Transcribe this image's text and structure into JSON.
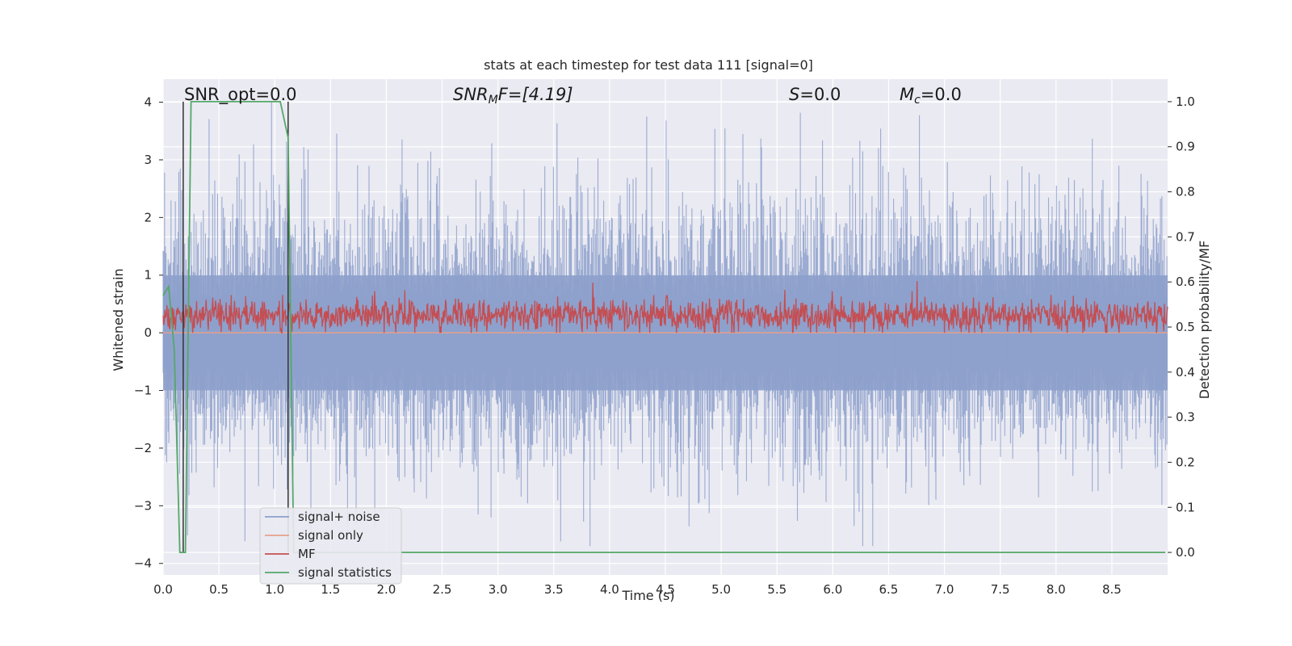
{
  "chart_data": {
    "type": "line",
    "title": "stats at each timestep for test data 111 [signal=0]",
    "xlabel": "Time (s)",
    "ylabel_left": "Whitened strain",
    "ylabel_right": "Detection probability/MF",
    "xlim": [
      0,
      9.0
    ],
    "ylim_left": [
      -4.2,
      4.4
    ],
    "ylim_right": [
      -0.05,
      1.05
    ],
    "x_ticks": [
      "0.0",
      "0.5",
      "1.0",
      "1.5",
      "2.0",
      "2.5",
      "3.0",
      "3.5",
      "4.0",
      "4.5",
      "5.0",
      "5.5",
      "6.0",
      "6.5",
      "7.0",
      "7.5",
      "8.0",
      "8.5"
    ],
    "y_left_ticks": [
      "4",
      "3",
      "2",
      "1",
      "0",
      "−1",
      "−2",
      "−3",
      "−4"
    ],
    "y_right_ticks": [
      "1.0",
      "0.9",
      "0.8",
      "0.7",
      "0.6",
      "0.5",
      "0.4",
      "0.3",
      "0.2",
      "0.1",
      "0.0"
    ],
    "grid": true,
    "legend_position": "lower-left",
    "annotations": {
      "snr_opt": "SNR_opt=0.0",
      "snr_mf_prefix": "SNR",
      "snr_mf_sub": "M",
      "snr_mf_rest": "F=[4.19]",
      "s_label": "S",
      "s_value": "=0.0",
      "mc_label": "M",
      "mc_sub": "c",
      "mc_value": "=0.0"
    },
    "series": [
      {
        "name": "signal+ noise",
        "color": "#8da0cb",
        "description_level": "noise",
        "amplitude_core": 1.0,
        "max_abs": 4.0
      },
      {
        "name": "signal only",
        "color": "#e6a08c",
        "values_constant": 0.0
      },
      {
        "name": "MF",
        "color": "#c44e52",
        "mean": 0.3,
        "max": 1.0
      },
      {
        "name": "signal statistics",
        "color": "#55a868",
        "x": [
          0.0,
          0.05,
          0.1,
          0.15,
          0.2,
          0.25,
          0.3,
          1.0,
          1.05,
          1.12,
          1.17,
          1.2,
          8.98
        ],
        "y": [
          0.57,
          0.59,
          0.45,
          0.0,
          0.0,
          1.0,
          1.0,
          1.0,
          1.0,
          0.92,
          0.0,
          0.0,
          0.0
        ]
      }
    ],
    "vertical_markers_x": [
      0.18,
      1.12
    ],
    "vertical_markers_color": "#333333"
  }
}
